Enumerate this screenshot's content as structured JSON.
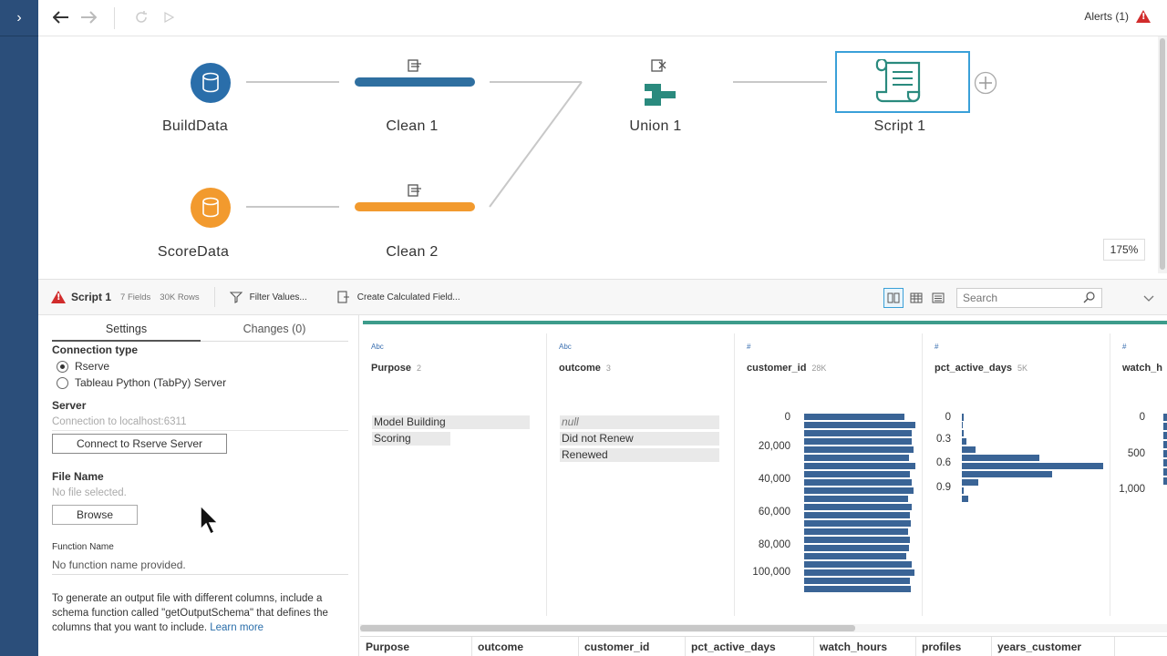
{
  "toolbar": {
    "alerts_label": "Alerts (1)"
  },
  "flow": {
    "nodes": [
      {
        "label": "BuildData",
        "color": "#2a6eaa"
      },
      {
        "label": "Clean 1",
        "color": "#2f6fa0"
      },
      {
        "label": "Union 1",
        "color": "#2a8a7e"
      },
      {
        "label": "Script 1",
        "color": "#2a8a7e"
      },
      {
        "label": "ScoreData",
        "color": "#f29a2e"
      },
      {
        "label": "Clean 2",
        "color": "#f29a2e"
      }
    ],
    "zoom": "175%"
  },
  "step_header": {
    "name": "Script 1",
    "fields": "7 Fields",
    "rows": "30K Rows",
    "filter_label": "Filter Values...",
    "calc_label": "Create Calculated Field...",
    "search_placeholder": "Search"
  },
  "settings": {
    "tabs": [
      "Settings",
      "Changes (0)"
    ],
    "connection_type_label": "Connection type",
    "radio_options": [
      "Rserve",
      "Tableau Python (TabPy) Server"
    ],
    "server_label": "Server",
    "server_placeholder": "Connection to localhost:6311",
    "connect_button": "Connect to Rserve Server",
    "file_name_label": "File Name",
    "file_placeholder": "No file selected.",
    "browse_button": "Browse",
    "function_name_label": "Function Name",
    "function_placeholder": "No function name provided.",
    "help_text": "To generate an output file with different columns, include a schema function called \"getOutputSchema\" that defines the columns that you want to include.",
    "learn_more": "Learn more"
  },
  "profile": {
    "cards": [
      {
        "type": "Abc",
        "title": "Purpose",
        "count": "2",
        "values": [
          "Model Building",
          "Scoring"
        ]
      },
      {
        "type": "Abc",
        "title": "outcome",
        "count": "3",
        "values": [
          "null",
          "Did not Renew",
          "Renewed"
        ]
      },
      {
        "type": "#",
        "title": "customer_id",
        "count": "28K",
        "axis": [
          "0",
          "20,000",
          "40,000",
          "60,000",
          "80,000",
          "100,000"
        ]
      },
      {
        "type": "#",
        "title": "pct_active_days",
        "count": "5K",
        "axis": [
          "0",
          "0.3",
          "0.6",
          "0.9"
        ]
      },
      {
        "type": "#",
        "title": "watch_h",
        "count": "",
        "axis": [
          "0",
          "500",
          "1,000"
        ]
      }
    ],
    "grid_columns": [
      "Purpose",
      "outcome",
      "customer_id",
      "pct_active_days",
      "watch_hours",
      "profiles",
      "years_customer"
    ]
  }
}
